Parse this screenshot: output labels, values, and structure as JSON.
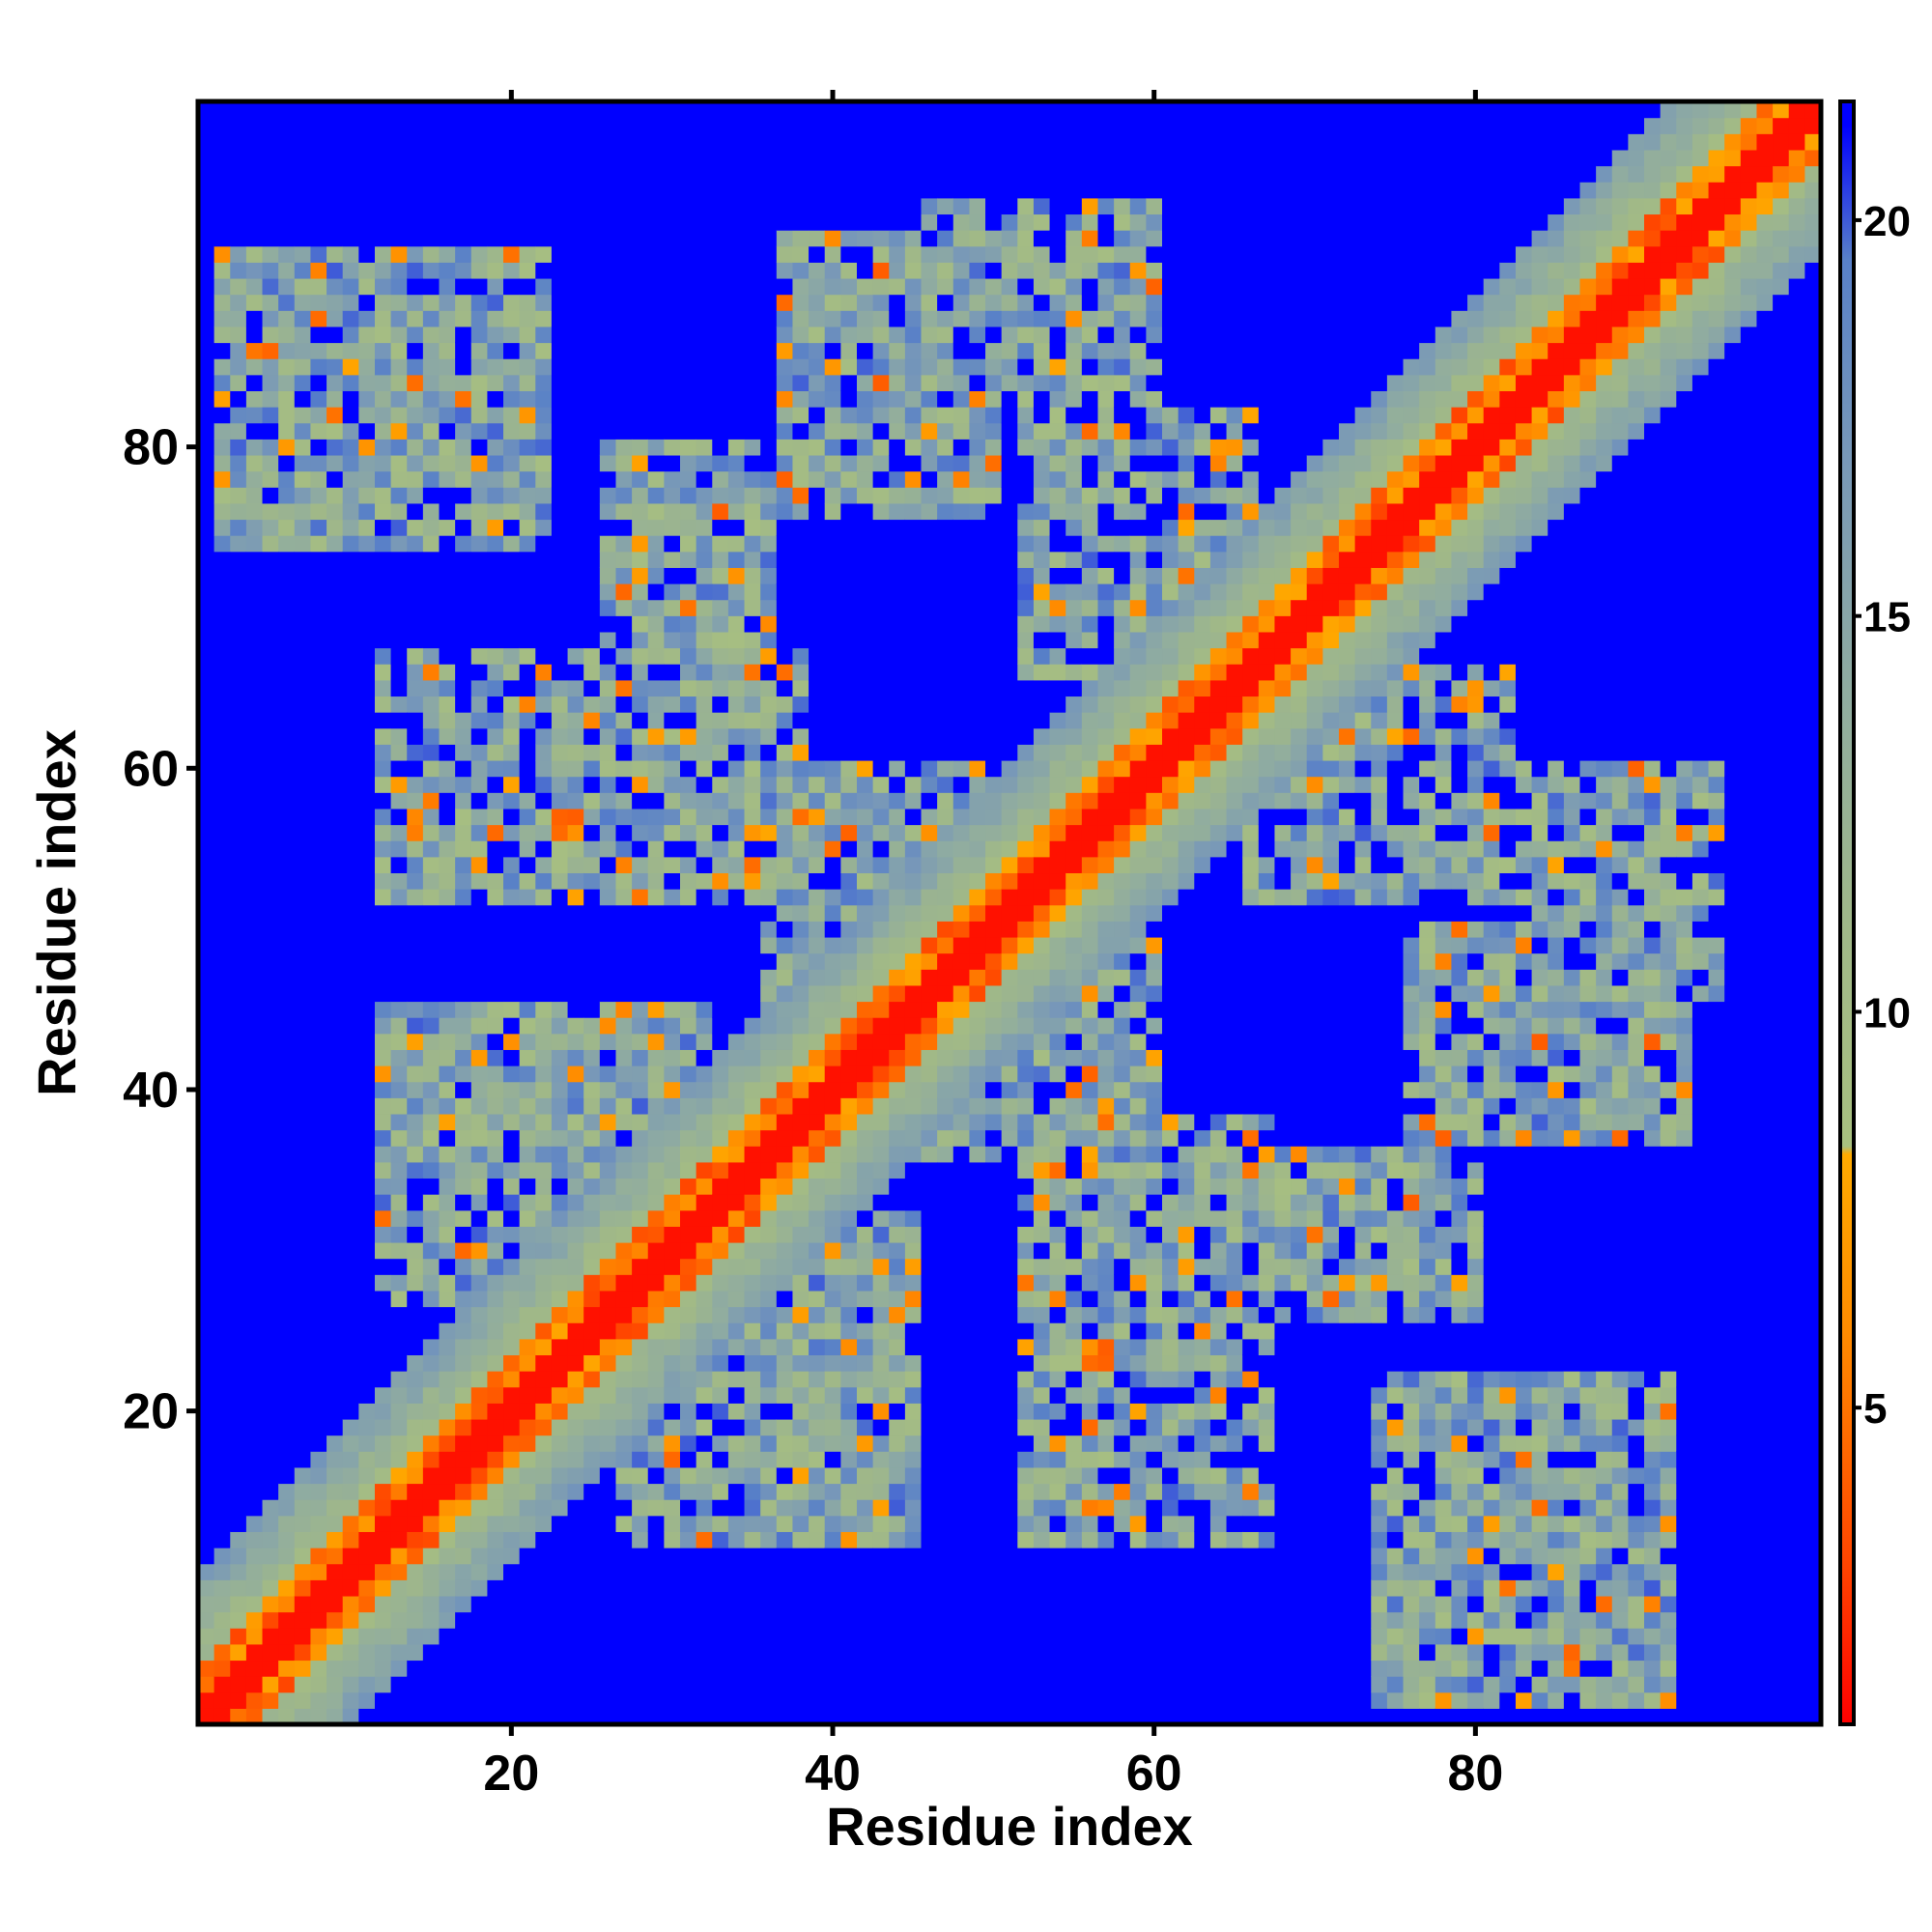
{
  "chart_data": {
    "type": "heatmap",
    "title": "",
    "xlabel": "Residue index",
    "ylabel": "Residue index",
    "xlim": [
      0.5,
      101.5
    ],
    "ylim": [
      0.5,
      101.5
    ],
    "n_residues": 101,
    "x_ticks": [
      20,
      40,
      60,
      80
    ],
    "y_ticks": [
      20,
      40,
      60,
      80
    ],
    "x_tick_labels": [
      "20",
      "40",
      "60",
      "80"
    ],
    "y_tick_labels": [
      "20",
      "40",
      "60",
      "80"
    ],
    "colorbar": {
      "range": [
        1,
        21.5
      ],
      "ticks": [
        5,
        10,
        15,
        20
      ],
      "tick_labels": [
        "5",
        "10",
        "15",
        "20"
      ],
      "stops": [
        {
          "value": 1.0,
          "color": "#ff0000"
        },
        {
          "value": 3.0,
          "color": "#ff4400"
        },
        {
          "value": 6.0,
          "color": "#ff8c00"
        },
        {
          "value": 8.2,
          "color": "#ffaa00"
        },
        {
          "value": 8.3,
          "color": "#a8c080"
        },
        {
          "value": 11.0,
          "color": "#a0b888"
        },
        {
          "value": 14.0,
          "color": "#90aca0"
        },
        {
          "value": 17.0,
          "color": "#7898b8"
        },
        {
          "value": 19.5,
          "color": "#5880c8"
        },
        {
          "value": 21.2,
          "color": "#0000ff"
        }
      ],
      "no_contact_color": "#0000ff"
    },
    "contact_blocks": [
      {
        "x": [
          2,
          22
        ],
        "y": [
          74,
          92
        ],
        "strength": 0.6
      },
      {
        "x": [
          26,
          36
        ],
        "y": [
          64,
          80
        ],
        "strength": 0.55
      },
      {
        "x": [
          37,
          50
        ],
        "y": [
          76,
          93
        ],
        "strength": 0.55
      },
      {
        "x": [
          46,
          60
        ],
        "y": [
          82,
          95
        ],
        "strength": 0.5
      },
      {
        "x": [
          12,
          38
        ],
        "y": [
          52,
          67
        ],
        "strength": 0.5
      },
      {
        "x": [
          12,
          32
        ],
        "y": [
          27,
          45
        ],
        "strength": 0.55
      },
      {
        "x": [
          22,
          40
        ],
        "y": [
          10,
          26
        ],
        "strength": 0.5
      },
      {
        "x": [
          52,
          66
        ],
        "y": [
          66,
          82
        ],
        "strength": 0.5
      },
      {
        "x": [
          60,
          75
        ],
        "y": [
          60,
          73
        ],
        "strength": 0.55
      },
      {
        "x": [
          57,
          72
        ],
        "y": [
          25,
          45
        ],
        "strength": 0.5
      },
      {
        "x": [
          68,
          84
        ],
        "y": [
          22,
          38
        ],
        "strength": 0.55
      },
      {
        "x": [
          72,
          88
        ],
        "y": [
          6,
          22
        ],
        "strength": 0.5
      },
      {
        "x": [
          76,
          96
        ],
        "y": [
          38,
          52
        ],
        "strength": 0.5
      },
      {
        "x": [
          74,
          90
        ],
        "y": [
          52,
          66
        ],
        "strength": 0.45
      },
      {
        "x": [
          40,
          56
        ],
        "y": [
          16,
          36
        ],
        "strength": 0.45
      },
      {
        "x": [
          36,
          52
        ],
        "y": [
          44,
          60
        ],
        "strength": 0.45
      }
    ],
    "diagonal_band": {
      "core_width": 1,
      "near_width": 3,
      "band_width": 9
    }
  }
}
